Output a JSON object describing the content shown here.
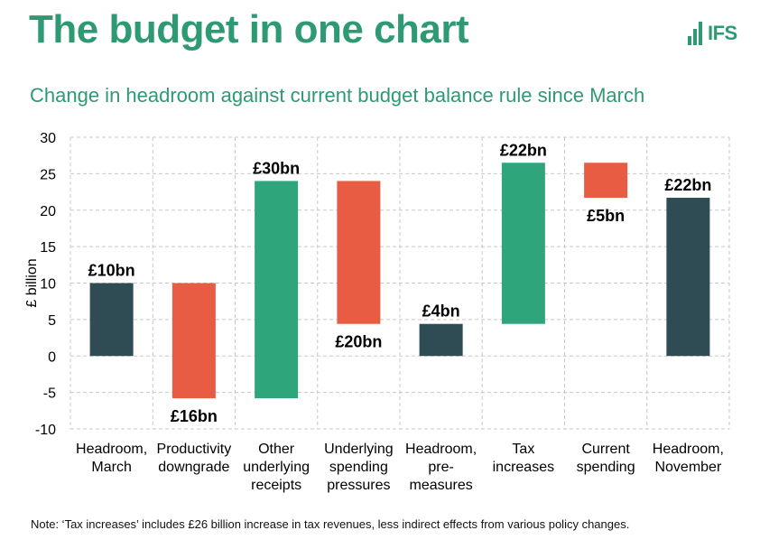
{
  "title": "The budget in one chart",
  "logo": {
    "text": "IFS"
  },
  "note": "Note: ‘Tax increases’ includes £26 billion increase in tax revenues, less indirect effects from various policy changes.",
  "colors": {
    "title": "#2e9a73",
    "positive": "#2ea57b",
    "negative": "#e85c44",
    "total": "#2f4b53",
    "grid": "#c8c8c8",
    "text": "#000000"
  },
  "chart_data": {
    "type": "bar",
    "subtype": "waterfall",
    "title": "Change in headroom against current budget balance rule since March",
    "ylabel": "£ billion",
    "xlabel": "",
    "ylim": [
      -10,
      30
    ],
    "yticks": [
      30,
      25,
      20,
      15,
      10,
      5,
      0,
      -5,
      -10
    ],
    "grid": true,
    "categories": [
      [
        "Headroom,",
        "March"
      ],
      [
        "Productivity",
        "downgrade"
      ],
      [
        "Other",
        "underlying",
        "receipts"
      ],
      [
        "Underlying",
        "spending",
        "pressures"
      ],
      [
        "Headroom,",
        "pre-",
        "measures"
      ],
      [
        "Tax",
        "increases"
      ],
      [
        "Current",
        "spending"
      ],
      [
        "Headroom,",
        "November"
      ]
    ],
    "bars": [
      {
        "low": 0,
        "high": 10,
        "kind": "total",
        "label": "£10bn",
        "label_pos": "above"
      },
      {
        "low": -5.8,
        "high": 10,
        "kind": "negative",
        "label": "£16bn",
        "label_pos": "below"
      },
      {
        "low": -5.8,
        "high": 24,
        "kind": "positive",
        "label": "£30bn",
        "label_pos": "above"
      },
      {
        "low": 4.4,
        "high": 24,
        "kind": "negative",
        "label": "£20bn",
        "label_pos": "below"
      },
      {
        "low": 0,
        "high": 4.4,
        "kind": "total",
        "label": "£4bn",
        "label_pos": "above"
      },
      {
        "low": 4.4,
        "high": 26.5,
        "kind": "positive",
        "label": "£22bn",
        "label_pos": "above"
      },
      {
        "low": 21.7,
        "high": 26.5,
        "kind": "negative",
        "label": "£5bn",
        "label_pos": "below"
      },
      {
        "low": 0,
        "high": 21.7,
        "kind": "total",
        "label": "£22bn",
        "label_pos": "above"
      }
    ]
  }
}
